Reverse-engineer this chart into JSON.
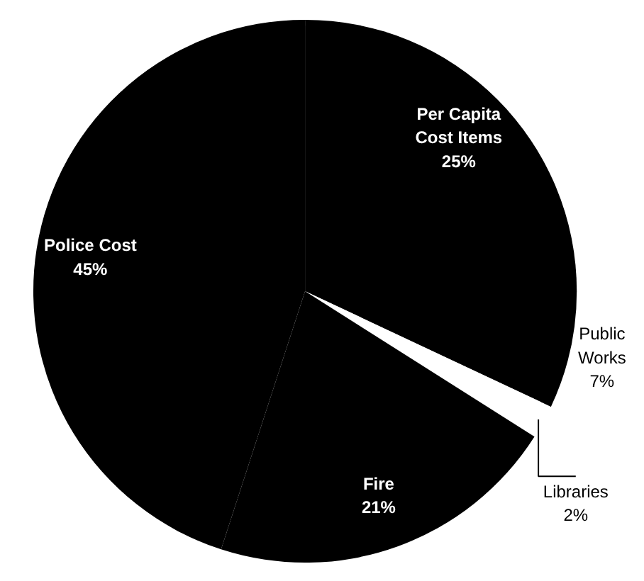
{
  "chart_data": {
    "type": "pie",
    "categories": [
      "Per Capita Cost Items",
      "Public Works",
      "Libraries",
      "Fire",
      "Police Cost"
    ],
    "values": [
      25,
      7,
      2,
      21,
      45
    ],
    "value_labels": [
      "25%",
      "7%",
      "2%",
      "21%",
      "45%"
    ],
    "colors": [
      "#000000",
      "#000000",
      "#ffffff",
      "#000000",
      "#000000"
    ]
  }
}
